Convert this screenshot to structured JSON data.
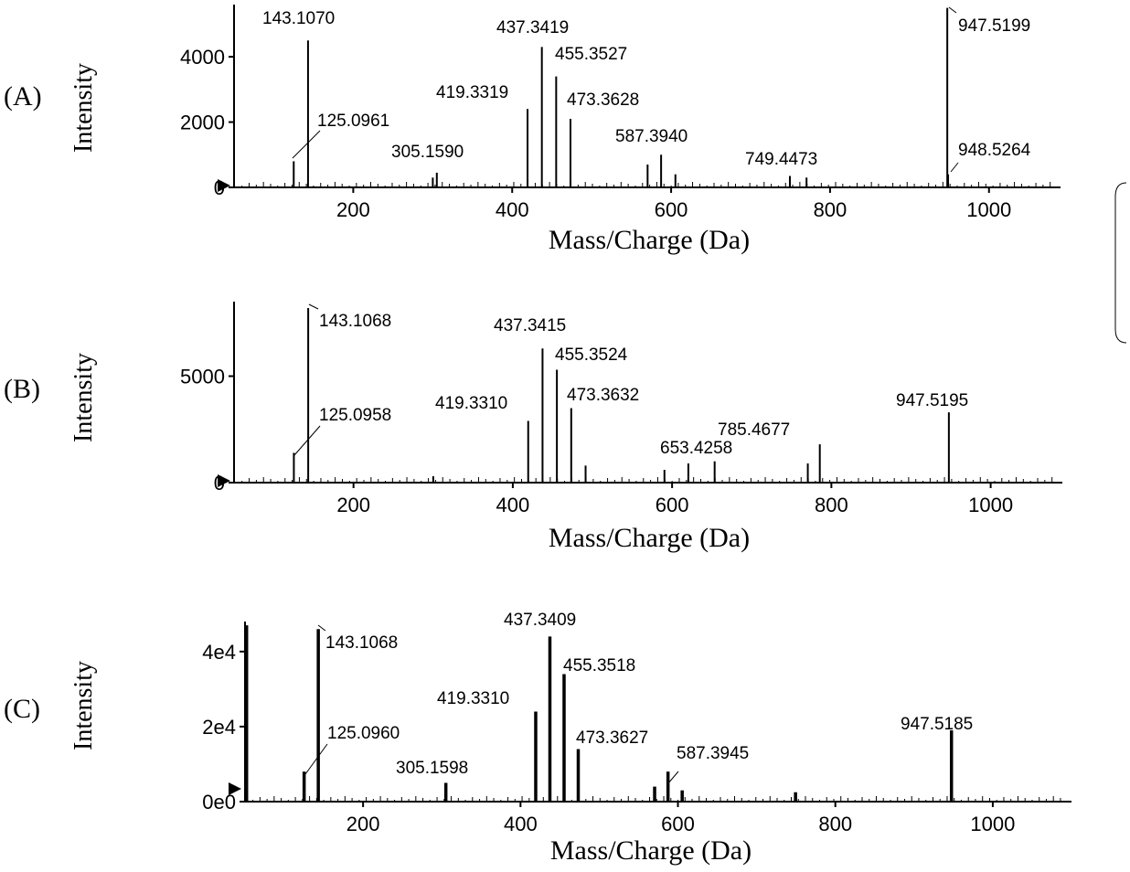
{
  "chart_data": [
    {
      "type": "bar",
      "panel": "(A)",
      "xlabel": "Mass/Charge (Da)",
      "ylabel": "Intensity",
      "xlim": [
        50,
        1090
      ],
      "ylim": [
        0,
        5600
      ],
      "xticks": [
        200,
        400,
        600,
        800,
        1000
      ],
      "yticks": [
        0,
        2000,
        4000
      ],
      "ytick_labels": [
        "0",
        "2000",
        "4000"
      ],
      "peaks": [
        {
          "mz": 125.0961,
          "intensity": 800,
          "label": "125.0961"
        },
        {
          "mz": 143.107,
          "intensity": 4500,
          "label": "143.1070"
        },
        {
          "mz": 300.1,
          "intensity": 300,
          "label": ""
        },
        {
          "mz": 305.159,
          "intensity": 450,
          "label": "305.1590"
        },
        {
          "mz": 419.3319,
          "intensity": 2400,
          "label": "419.3319"
        },
        {
          "mz": 437.3419,
          "intensity": 4300,
          "label": "437.3419"
        },
        {
          "mz": 455.3527,
          "intensity": 3400,
          "label": "455.3527"
        },
        {
          "mz": 473.3628,
          "intensity": 2100,
          "label": "473.3628"
        },
        {
          "mz": 570.4,
          "intensity": 700,
          "label": ""
        },
        {
          "mz": 587.394,
          "intensity": 1000,
          "label": "587.3940"
        },
        {
          "mz": 605.4,
          "intensity": 400,
          "label": ""
        },
        {
          "mz": 749.4473,
          "intensity": 350,
          "label": "749.4473"
        },
        {
          "mz": 770.4,
          "intensity": 300,
          "label": ""
        },
        {
          "mz": 947.5199,
          "intensity": 5500,
          "label": "947.5199"
        },
        {
          "mz": 948.5264,
          "intensity": 400,
          "label": "948.5264"
        }
      ]
    },
    {
      "type": "bar",
      "panel": "(B)",
      "xlabel": "Mass/Charge (Da)",
      "ylabel": "Intensity",
      "xlim": [
        50,
        1090
      ],
      "ylim": [
        0,
        8500
      ],
      "xticks": [
        200,
        400,
        600,
        800,
        1000
      ],
      "yticks": [
        0,
        5000
      ],
      "ytick_labels": [
        "0",
        "5000"
      ],
      "peaks": [
        {
          "mz": 125.0958,
          "intensity": 1400,
          "label": "125.0958"
        },
        {
          "mz": 143.1068,
          "intensity": 8200,
          "label": "143.1068"
        },
        {
          "mz": 300.1,
          "intensity": 300,
          "label": ""
        },
        {
          "mz": 419.331,
          "intensity": 2900,
          "label": "419.3310"
        },
        {
          "mz": 437.3415,
          "intensity": 6300,
          "label": "437.3415"
        },
        {
          "mz": 455.3524,
          "intensity": 5300,
          "label": "455.3524"
        },
        {
          "mz": 473.3632,
          "intensity": 3500,
          "label": "473.3632"
        },
        {
          "mz": 491.4,
          "intensity": 800,
          "label": ""
        },
        {
          "mz": 590.4,
          "intensity": 600,
          "label": ""
        },
        {
          "mz": 620.4,
          "intensity": 900,
          "label": ""
        },
        {
          "mz": 653.4258,
          "intensity": 1000,
          "label": "653.4258"
        },
        {
          "mz": 770.4,
          "intensity": 900,
          "label": ""
        },
        {
          "mz": 785.4677,
          "intensity": 1800,
          "label": "785.4677"
        },
        {
          "mz": 947.5195,
          "intensity": 3300,
          "label": "947.5195"
        }
      ]
    },
    {
      "type": "bar",
      "panel": "(C)",
      "xlabel": "Mass/Charge (Da)",
      "ylabel": "Intensity",
      "xlim": [
        50,
        1100
      ],
      "ylim": [
        0,
        48000
      ],
      "xticks": [
        200,
        400,
        600,
        800,
        1000
      ],
      "yticks": [
        0,
        20000,
        40000
      ],
      "ytick_labels": [
        "0e0",
        "2e4",
        "4e4"
      ],
      "peaks": [
        {
          "mz": 52,
          "intensity": 47000,
          "label": ""
        },
        {
          "mz": 125.096,
          "intensity": 8000,
          "label": "125.0960"
        },
        {
          "mz": 143.1068,
          "intensity": 46000,
          "label": "143.1068"
        },
        {
          "mz": 305.1598,
          "intensity": 5000,
          "label": "305.1598"
        },
        {
          "mz": 419.331,
          "intensity": 24000,
          "label": "419.3310"
        },
        {
          "mz": 437.3409,
          "intensity": 44000,
          "label": "437.3409"
        },
        {
          "mz": 455.3518,
          "intensity": 34000,
          "label": "455.3518"
        },
        {
          "mz": 473.3627,
          "intensity": 14000,
          "label": "473.3627"
        },
        {
          "mz": 570.4,
          "intensity": 4000,
          "label": ""
        },
        {
          "mz": 587.3945,
          "intensity": 8000,
          "label": "587.3945"
        },
        {
          "mz": 605.4,
          "intensity": 3000,
          "label": ""
        },
        {
          "mz": 749.4,
          "intensity": 2500,
          "label": ""
        },
        {
          "mz": 947.5185,
          "intensity": 19000,
          "label": "947.5185"
        }
      ]
    }
  ]
}
